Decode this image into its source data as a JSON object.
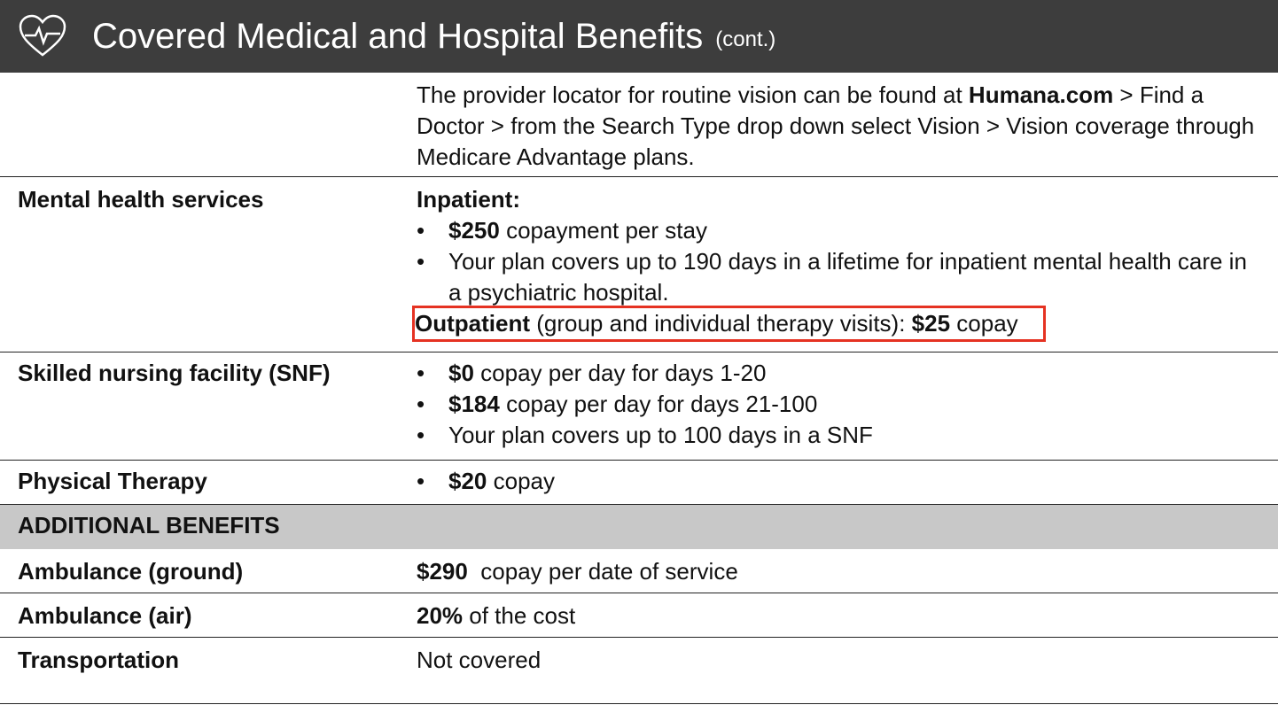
{
  "header": {
    "title": "Covered Medical and Hospital Benefits",
    "suffix": "(cont.)"
  },
  "rows": [
    {
      "blocks": [
        {
          "kind": "p",
          "runs": [
            {
              "text": "The provider locator for routine vision can be found at "
            },
            {
              "text": "Humana.com",
              "bold": true
            },
            {
              "text": " > Find a Doctor > from the Search Type drop down select Vision > Vision coverage through Medicare Advantage plans."
            }
          ]
        }
      ]
    },
    {
      "label": "Mental health services",
      "blocks": [
        {
          "kind": "p",
          "runs": [
            {
              "text": "Inpatient:",
              "bold": true
            }
          ]
        },
        {
          "kind": "bullet",
          "runs": [
            {
              "text": "$250",
              "bold": true
            },
            {
              "text": " copayment per stay"
            }
          ]
        },
        {
          "kind": "bullet",
          "runs": [
            {
              "text": "Your plan covers up to 190 days in a lifetime for inpatient mental health care in a psychiatric hospital."
            }
          ]
        },
        {
          "kind": "p",
          "highlight": true,
          "runs": [
            {
              "text": "Outpatient",
              "bold": true
            },
            {
              "text": " (group and individual therapy visits): "
            },
            {
              "text": "$25",
              "bold": true
            },
            {
              "text": " copay"
            }
          ]
        }
      ]
    },
    {
      "label": "Skilled nursing facility (SNF)",
      "blocks": [
        {
          "kind": "bullet",
          "runs": [
            {
              "text": "$0",
              "bold": true
            },
            {
              "text": " copay per day for days 1-20"
            }
          ]
        },
        {
          "kind": "bullet",
          "runs": [
            {
              "text": "$184",
              "bold": true
            },
            {
              "text": " copay per day for days 21-100"
            }
          ]
        },
        {
          "kind": "bullet",
          "runs": [
            {
              "text": "Your plan covers up to 100 days in a SNF"
            }
          ]
        }
      ]
    },
    {
      "label": "Physical Therapy",
      "blocks": [
        {
          "kind": "bullet",
          "runs": [
            {
              "text": "$20",
              "bold": true
            },
            {
              "text": " copay"
            }
          ]
        }
      ]
    },
    {
      "section": "ADDITIONAL BENEFITS"
    },
    {
      "label": "Ambulance (ground)",
      "blocks": [
        {
          "kind": "p",
          "runs": [
            {
              "text": "$290",
              "bold": true
            },
            {
              "text": "  copay per date of service"
            }
          ]
        }
      ]
    },
    {
      "label": "Ambulance (air)",
      "blocks": [
        {
          "kind": "p",
          "runs": [
            {
              "text": "20%",
              "bold": true
            },
            {
              "text": " of the cost"
            }
          ]
        }
      ]
    },
    {
      "label": "Transportation",
      "blocks": [
        {
          "kind": "p",
          "runs": [
            {
              "text": "Not covered"
            }
          ]
        }
      ]
    }
  ]
}
